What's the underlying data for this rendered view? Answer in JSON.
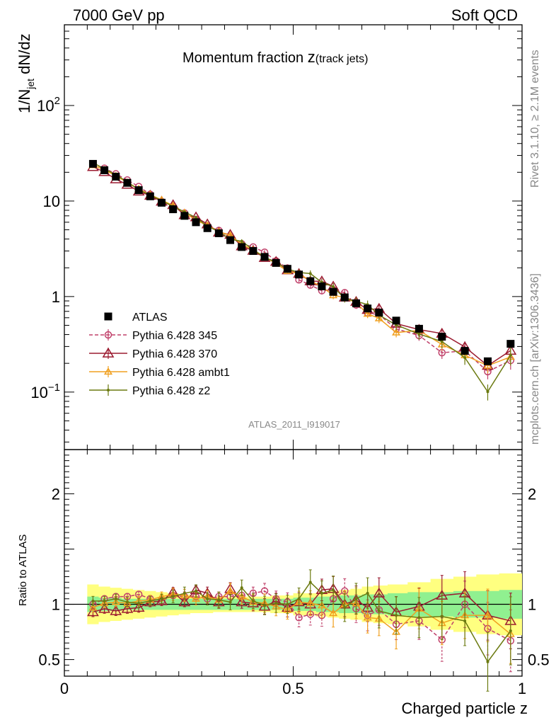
{
  "header": {
    "left": "7000 GeV pp",
    "right": "Soft QCD"
  },
  "side_labels": {
    "rivet": "Rivet 3.1.10, ≥ 2.1M events",
    "mcplots": "mcplots.cern.ch [arXiv:1306.3436]"
  },
  "chart_data": {
    "type": "line",
    "title_main": "Momentum fraction ",
    "title_var": "z",
    "title_sub": "(track jets)",
    "analysis_id": "ATLAS_2011_I919017",
    "ylabel_main": "1/N",
    "ylabel_sub": "jet",
    "ylabel_tail": " dN/dz",
    "ratio_ylabel": "Ratio to ATLAS",
    "xlabel": "Charged particle z",
    "xlim": [
      0,
      1
    ],
    "ylim_main": [
      0.025,
      700
    ],
    "ylim_ratio": [
      0.35,
      2.4
    ],
    "yscale_main": "log",
    "xticks": [
      {
        "v": 0,
        "label": "0"
      },
      {
        "v": 0.5,
        "label": "0.5"
      },
      {
        "v": 1,
        "label": "1"
      }
    ],
    "main_ticks": [
      {
        "v": 0.1,
        "label": "10",
        "exp": "−1"
      },
      {
        "v": 1,
        "label": "1",
        "exp": ""
      },
      {
        "v": 10,
        "label": "10",
        "exp": ""
      },
      {
        "v": 100,
        "label": "10",
        "exp": "2"
      }
    ],
    "ratio_ticks": [
      {
        "v": 0.5,
        "label": "0.5"
      },
      {
        "v": 1,
        "label": "1"
      },
      {
        "v": 2,
        "label": "2"
      }
    ],
    "x": [
      0.0625,
      0.0875,
      0.1125,
      0.1375,
      0.1625,
      0.1875,
      0.2125,
      0.2375,
      0.2625,
      0.2875,
      0.3125,
      0.3375,
      0.3625,
      0.3875,
      0.4125,
      0.4375,
      0.4625,
      0.4875,
      0.5125,
      0.5375,
      0.5625,
      0.5875,
      0.6125,
      0.6375,
      0.6625,
      0.6875,
      0.725,
      0.775,
      0.825,
      0.875,
      0.925,
      0.975
    ],
    "atlas": [
      24.5,
      21.0,
      18.0,
      15.5,
      13.0,
      11.2,
      9.6,
      8.2,
      7.0,
      6.0,
      5.2,
      4.6,
      3.9,
      3.3,
      3.0,
      2.6,
      2.25,
      1.95,
      1.7,
      1.45,
      1.28,
      1.12,
      0.98,
      0.85,
      0.75,
      0.68,
      0.56,
      0.46,
      0.38,
      0.27,
      0.21,
      0.32
    ],
    "atlas_err_inner": [
      0.07,
      0.06,
      0.06,
      0.05,
      0.05,
      0.05,
      0.05,
      0.05,
      0.05,
      0.05,
      0.05,
      0.05,
      0.05,
      0.05,
      0.05,
      0.05,
      0.05,
      0.05,
      0.06,
      0.06,
      0.07,
      0.07,
      0.08,
      0.08,
      0.09,
      0.09,
      0.1,
      0.11,
      0.11,
      0.12,
      0.12,
      0.13
    ],
    "atlas_err_outer": [
      0.18,
      0.16,
      0.15,
      0.14,
      0.13,
      0.12,
      0.11,
      0.1,
      0.09,
      0.08,
      0.08,
      0.07,
      0.07,
      0.07,
      0.07,
      0.07,
      0.08,
      0.08,
      0.1,
      0.1,
      0.11,
      0.12,
      0.13,
      0.14,
      0.16,
      0.17,
      0.18,
      0.2,
      0.23,
      0.25,
      0.27,
      0.28
    ],
    "series": [
      {
        "name": "ATLAS",
        "color": "#000000",
        "marker": "square"
      },
      {
        "name": "Pythia 6.428 345",
        "color": "#c0406a",
        "marker": "circle",
        "dash": true,
        "ratio": [
          1.0,
          1.05,
          1.07,
          1.07,
          1.09,
          1.05,
          1.03,
          1.08,
          1.07,
          1.07,
          1.05,
          1.07,
          1.07,
          1.08,
          1.1,
          1.12,
          1.05,
          1.02,
          0.88,
          0.91,
          0.9,
          1.05,
          1.12,
          0.96,
          0.9,
          0.95,
          0.82,
          0.85,
          0.68,
          1.0,
          0.78,
          0.67
        ],
        "err": [
          0.02,
          0.02,
          0.02,
          0.02,
          0.02,
          0.02,
          0.02,
          0.02,
          0.03,
          0.03,
          0.03,
          0.03,
          0.04,
          0.04,
          0.04,
          0.05,
          0.05,
          0.06,
          0.06,
          0.07,
          0.07,
          0.08,
          0.08,
          0.09,
          0.1,
          0.1,
          0.1,
          0.12,
          0.14,
          0.15,
          0.17,
          0.2
        ]
      },
      {
        "name": "Pythia 6.428 370",
        "color": "#9b1b30",
        "marker": "triangle",
        "ratio": [
          0.93,
          0.96,
          0.94,
          0.96,
          0.97,
          1.02,
          1.03,
          1.11,
          1.02,
          1.13,
          1.1,
          1.02,
          1.14,
          1.02,
          1.01,
          0.98,
          1.03,
          0.97,
          1.02,
          1.0,
          1.13,
          1.14,
          1.0,
          1.04,
          0.97,
          1.1,
          0.93,
          0.98,
          1.08,
          1.1,
          0.9,
          0.85
        ],
        "err": [
          0.03,
          0.03,
          0.03,
          0.03,
          0.03,
          0.03,
          0.03,
          0.03,
          0.03,
          0.03,
          0.04,
          0.04,
          0.04,
          0.04,
          0.05,
          0.05,
          0.05,
          0.06,
          0.06,
          0.07,
          0.07,
          0.08,
          0.08,
          0.09,
          0.09,
          0.1,
          0.1,
          0.12,
          0.13,
          0.14,
          0.16,
          0.18
        ]
      },
      {
        "name": "Pythia 6.428 ambt1",
        "color": "#f0a020",
        "marker": "triangle-small",
        "ratio": [
          0.97,
          1.01,
          1.02,
          1.01,
          1.03,
          1.04,
          1.07,
          1.09,
          1.08,
          1.05,
          1.07,
          1.04,
          1.12,
          1.07,
          1.02,
          1.01,
          0.98,
          0.95,
          1.02,
          1.01,
          0.99,
          0.92,
          1.0,
          1.01,
          0.88,
          0.87,
          0.75,
          0.96,
          0.83,
          0.9,
          0.9,
          0.73
        ],
        "err": [
          0.03,
          0.03,
          0.03,
          0.03,
          0.03,
          0.03,
          0.03,
          0.04,
          0.04,
          0.04,
          0.04,
          0.05,
          0.05,
          0.05,
          0.05,
          0.06,
          0.06,
          0.06,
          0.07,
          0.08,
          0.08,
          0.09,
          0.09,
          0.1,
          0.1,
          0.11,
          0.11,
          0.13,
          0.14,
          0.15,
          0.17,
          0.19
        ]
      },
      {
        "name": "Pythia 6.428 z2",
        "color": "#6b7a10",
        "marker": "dot",
        "ratio": [
          1.03,
          1.03,
          1.05,
          1.02,
          1.01,
          1.03,
          1.05,
          1.07,
          1.1,
          1.12,
          1.05,
          1.04,
          1.02,
          1.15,
          1.03,
          0.99,
          1.01,
          1.0,
          1.05,
          1.2,
          1.1,
          1.13,
          0.97,
          1.05,
          1.1,
          0.94,
          0.9,
          0.88,
          0.89,
          0.85,
          0.48,
          0.76
        ],
        "err": [
          0.03,
          0.03,
          0.03,
          0.03,
          0.03,
          0.03,
          0.03,
          0.04,
          0.04,
          0.04,
          0.04,
          0.05,
          0.05,
          0.05,
          0.05,
          0.06,
          0.06,
          0.06,
          0.07,
          0.08,
          0.08,
          0.09,
          0.09,
          0.1,
          0.1,
          0.11,
          0.12,
          0.13,
          0.15,
          0.16,
          0.19,
          0.22
        ]
      }
    ]
  }
}
